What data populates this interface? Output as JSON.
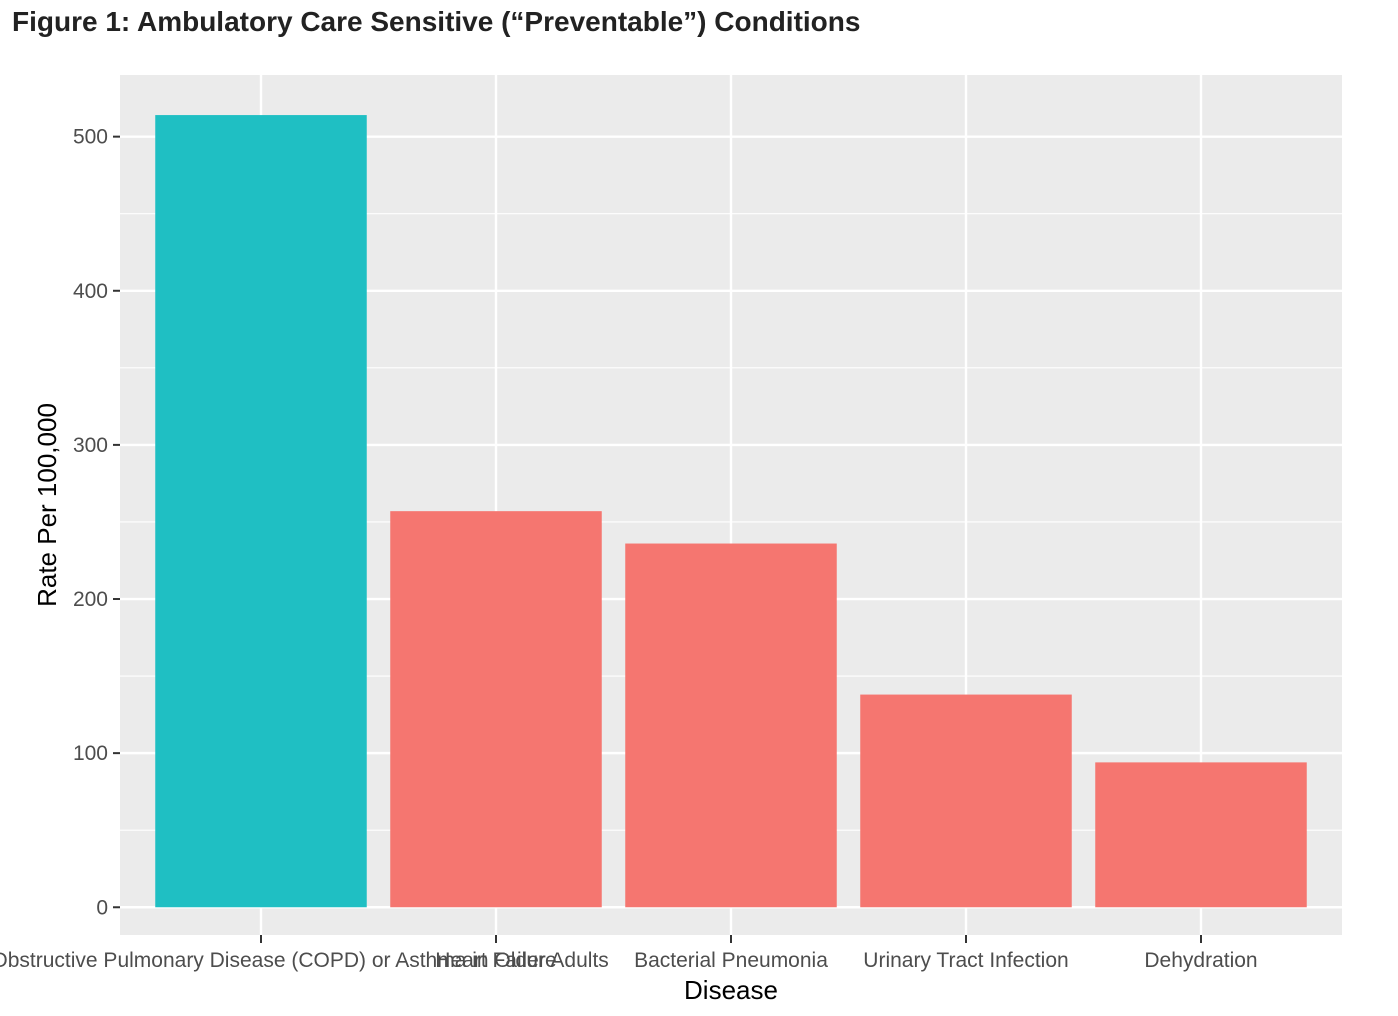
{
  "chart_data": {
    "type": "bar",
    "title": "Figure 1: Ambulatory Care Sensitive (“Preventable”) Conditions",
    "xlabel": "Disease",
    "ylabel": "Rate Per 100,000",
    "categories": [
      "Chronic Obstructive Pulmonary Disease (COPD) or Asthma in Older Adults",
      "Heart Failure",
      "Bacterial Pneumonia",
      "Urinary Tract Infection",
      "Dehydration"
    ],
    "values": [
      514,
      257,
      236,
      138,
      94
    ],
    "bar_colors": [
      "#1fbfc3",
      "#f57670",
      "#f57670",
      "#f57670",
      "#f57670"
    ],
    "yticks": [
      0,
      100,
      200,
      300,
      400,
      500
    ],
    "ylim": [
      -18,
      540
    ],
    "grid": true,
    "panel_background": "#ebebeb",
    "gridline_color": "#ffffff"
  }
}
